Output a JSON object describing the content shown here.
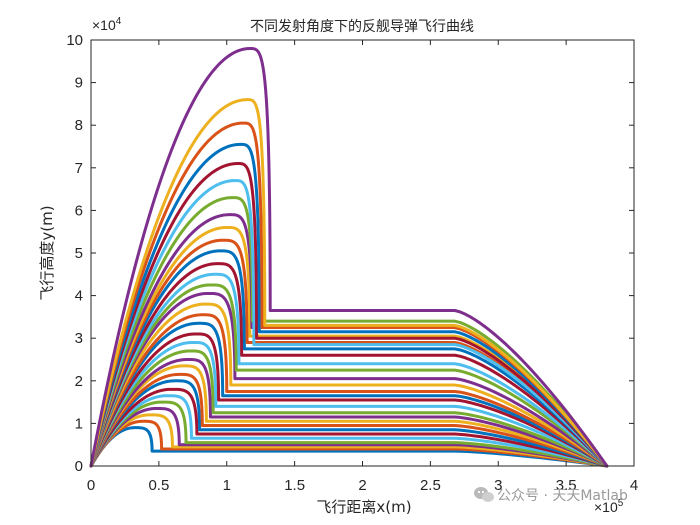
{
  "chart_data": {
    "type": "line",
    "title": "不同发射角度下的反舰导弹飞行曲线",
    "xlabel": "飞行距离x(m)",
    "ylabel": "飞行高度y(m)",
    "x_exponent_label": "×10",
    "x_exponent_power": "5",
    "y_exponent_label": "×10",
    "y_exponent_power": "4",
    "xlim": [
      0,
      400000
    ],
    "ylim": [
      0,
      100000
    ],
    "xticks": [
      0,
      50000,
      100000,
      150000,
      200000,
      250000,
      300000,
      350000,
      400000
    ],
    "xtick_labels": [
      "0",
      "0.5",
      "1",
      "1.5",
      "2",
      "2.5",
      "3",
      "3.5",
      "4"
    ],
    "yticks": [
      0,
      10000,
      20000,
      30000,
      40000,
      50000,
      60000,
      70000,
      80000,
      90000,
      100000
    ],
    "ytick_labels": [
      "0",
      "1",
      "2",
      "3",
      "4",
      "5",
      "6",
      "7",
      "8",
      "9",
      "10"
    ],
    "grid": false,
    "legend": "none",
    "colors": [
      "#0072BD",
      "#D95319",
      "#EDB120",
      "#7E2F8E",
      "#77AC30",
      "#4DBEEE",
      "#A2142F"
    ],
    "series": [
      {
        "apex_x": 32000,
        "apex_y": 9000,
        "drop_x": 45000,
        "cruise_y": 3500
      },
      {
        "apex_x": 38000,
        "apex_y": 10500,
        "drop_x": 52000,
        "cruise_y": 4000
      },
      {
        "apex_x": 43000,
        "apex_y": 12000,
        "drop_x": 60000,
        "cruise_y": 4500
      },
      {
        "apex_x": 48000,
        "apex_y": 13500,
        "drop_x": 65000,
        "cruise_y": 5000
      },
      {
        "apex_x": 52000,
        "apex_y": 15000,
        "drop_x": 70000,
        "cruise_y": 5500
      },
      {
        "apex_x": 56000,
        "apex_y": 16500,
        "drop_x": 74000,
        "cruise_y": 6500
      },
      {
        "apex_x": 59000,
        "apex_y": 18000,
        "drop_x": 78000,
        "cruise_y": 7500
      },
      {
        "apex_x": 62000,
        "apex_y": 20000,
        "drop_x": 80000,
        "cruise_y": 8500
      },
      {
        "apex_x": 65000,
        "apex_y": 21500,
        "drop_x": 82000,
        "cruise_y": 9500
      },
      {
        "apex_x": 68000,
        "apex_y": 23500,
        "drop_x": 85000,
        "cruise_y": 10500
      },
      {
        "apex_x": 71000,
        "apex_y": 25000,
        "drop_x": 88000,
        "cruise_y": 11500
      },
      {
        "apex_x": 73000,
        "apex_y": 27000,
        "drop_x": 90000,
        "cruise_y": 12500
      },
      {
        "apex_x": 75000,
        "apex_y": 29000,
        "drop_x": 92000,
        "cruise_y": 14000
      },
      {
        "apex_x": 77000,
        "apex_y": 31000,
        "drop_x": 94000,
        "cruise_y": 15500
      },
      {
        "apex_x": 79000,
        "apex_y": 33500,
        "drop_x": 97000,
        "cruise_y": 16500
      },
      {
        "apex_x": 82000,
        "apex_y": 35500,
        "drop_x": 100000,
        "cruise_y": 17500
      },
      {
        "apex_x": 84000,
        "apex_y": 38000,
        "drop_x": 103000,
        "cruise_y": 19000
      },
      {
        "apex_x": 86000,
        "apex_y": 40500,
        "drop_x": 106000,
        "cruise_y": 20500
      },
      {
        "apex_x": 88000,
        "apex_y": 42500,
        "drop_x": 107000,
        "cruise_y": 22500
      },
      {
        "apex_x": 91000,
        "apex_y": 45000,
        "drop_x": 109000,
        "cruise_y": 24000
      },
      {
        "apex_x": 93000,
        "apex_y": 47500,
        "drop_x": 111000,
        "cruise_y": 26000
      },
      {
        "apex_x": 95000,
        "apex_y": 50500,
        "drop_x": 113000,
        "cruise_y": 27500
      },
      {
        "apex_x": 97000,
        "apex_y": 53000,
        "drop_x": 115000,
        "cruise_y": 29000
      },
      {
        "apex_x": 100000,
        "apex_y": 56000,
        "drop_x": 117000,
        "cruise_y": 30500
      },
      {
        "apex_x": 102000,
        "apex_y": 59000,
        "drop_x": 118500,
        "cruise_y": 32500
      },
      {
        "apex_x": 104000,
        "apex_y": 63000,
        "drop_x": 119000,
        "cruise_y": 34000
      },
      {
        "apex_x": 106000,
        "apex_y": 67000,
        "drop_x": 120000,
        "cruise_y": 28500
      },
      {
        "apex_x": 108000,
        "apex_y": 71000,
        "drop_x": 122000,
        "cruise_y": 30000
      },
      {
        "apex_x": 110000,
        "apex_y": 75500,
        "drop_x": 124000,
        "cruise_y": 31500
      },
      {
        "apex_x": 112000,
        "apex_y": 80500,
        "drop_x": 126000,
        "cruise_y": 32500
      },
      {
        "apex_x": 115000,
        "apex_y": 86000,
        "drop_x": 128000,
        "cruise_y": 33000
      },
      {
        "apex_x": 117000,
        "apex_y": 98000,
        "drop_x": 132000,
        "cruise_y": 36500
      }
    ],
    "cruise_end_x": 268000,
    "target_x": 380000
  },
  "watermark": {
    "text": "公众号 · 天天Matlab",
    "icon": "wechat-icon"
  }
}
